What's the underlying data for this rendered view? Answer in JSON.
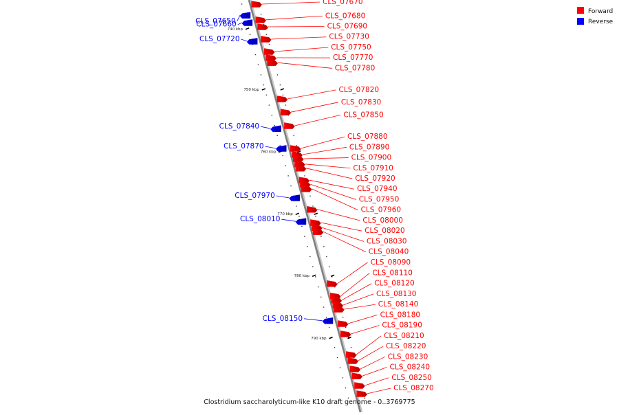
{
  "caption": "Clostridium saccharolyticum-like K10 draft genome - 0..3769775",
  "legend": {
    "forward": {
      "label": "Forward",
      "color": "#ff0000"
    },
    "reverse": {
      "label": "Reverse",
      "color": "#0000ff"
    }
  },
  "ticks": [
    {
      "label": "740 kbp",
      "t": 0.068
    },
    {
      "label": "750 kbp",
      "t": 0.215
    },
    {
      "label": "760 kbp",
      "t": 0.366
    },
    {
      "label": "770 kbp",
      "t": 0.517
    },
    {
      "label": "780 kbp",
      "t": 0.667
    },
    {
      "label": "790 kbp",
      "t": 0.818
    }
  ],
  "genes": [
    {
      "label": "CLS_07650",
      "strand": "reverse",
      "t": 0.037
    },
    {
      "label": "CLS_07660",
      "strand": "reverse",
      "t": 0.055
    },
    {
      "label": "CLS_07670",
      "strand": "forward",
      "t": 0.01
    },
    {
      "label": "CLS_07680",
      "strand": "forward",
      "t": 0.048
    },
    {
      "label": "CLS_07690",
      "strand": "forward",
      "t": 0.065
    },
    {
      "label": "CLS_07720",
      "strand": "reverse",
      "t": 0.1
    },
    {
      "label": "CLS_07730",
      "strand": "forward",
      "t": 0.095
    },
    {
      "label": "CLS_07750",
      "strand": "forward",
      "t": 0.125
    },
    {
      "label": "CLS_07770",
      "strand": "forward",
      "t": 0.14
    },
    {
      "label": "CLS_07780",
      "strand": "forward",
      "t": 0.152
    },
    {
      "label": "CLS_07820",
      "strand": "forward",
      "t": 0.24
    },
    {
      "label": "CLS_07830",
      "strand": "forward",
      "t": 0.272
    },
    {
      "label": "CLS_07840",
      "strand": "reverse",
      "t": 0.312
    },
    {
      "label": "CLS_07850",
      "strand": "forward",
      "t": 0.305
    },
    {
      "label": "CLS_07870",
      "strand": "reverse",
      "t": 0.36
    },
    {
      "label": "CLS_07880",
      "strand": "forward",
      "t": 0.36
    },
    {
      "label": "CLS_07890",
      "strand": "forward",
      "t": 0.375
    },
    {
      "label": "CLS_07900",
      "strand": "forward",
      "t": 0.385
    },
    {
      "label": "CLS_07910",
      "strand": "forward",
      "t": 0.398
    },
    {
      "label": "CLS_07920",
      "strand": "forward",
      "t": 0.408
    },
    {
      "label": "CLS_07940",
      "strand": "forward",
      "t": 0.437
    },
    {
      "label": "CLS_07950",
      "strand": "forward",
      "t": 0.447
    },
    {
      "label": "CLS_07960",
      "strand": "forward",
      "t": 0.458
    },
    {
      "label": "CLS_07970",
      "strand": "reverse",
      "t": 0.48
    },
    {
      "label": "CLS_08000",
      "strand": "forward",
      "t": 0.508
    },
    {
      "label": "CLS_08010",
      "strand": "reverse",
      "t": 0.537
    },
    {
      "label": "CLS_08020",
      "strand": "forward",
      "t": 0.54
    },
    {
      "label": "CLS_08030",
      "strand": "forward",
      "t": 0.552
    },
    {
      "label": "CLS_08040",
      "strand": "forward",
      "t": 0.562
    },
    {
      "label": "CLS_08090",
      "strand": "forward",
      "t": 0.688
    },
    {
      "label": "CLS_08110",
      "strand": "forward",
      "t": 0.718
    },
    {
      "label": "CLS_08120",
      "strand": "forward",
      "t": 0.728
    },
    {
      "label": "CLS_08130",
      "strand": "forward",
      "t": 0.74
    },
    {
      "label": "CLS_08140",
      "strand": "forward",
      "t": 0.75
    },
    {
      "label": "CLS_08150",
      "strand": "reverse",
      "t": 0.778
    },
    {
      "label": "CLS_08180",
      "strand": "forward",
      "t": 0.785
    },
    {
      "label": "CLS_08190",
      "strand": "forward",
      "t": 0.81
    },
    {
      "label": "CLS_08210",
      "strand": "forward",
      "t": 0.86
    },
    {
      "label": "CLS_08220",
      "strand": "forward",
      "t": 0.875
    },
    {
      "label": "CLS_08230",
      "strand": "forward",
      "t": 0.895
    },
    {
      "label": "CLS_08240",
      "strand": "forward",
      "t": 0.912
    },
    {
      "label": "CLS_08250",
      "strand": "forward",
      "t": 0.935
    },
    {
      "label": "CLS_08270",
      "strand": "forward",
      "t": 0.955
    }
  ]
}
